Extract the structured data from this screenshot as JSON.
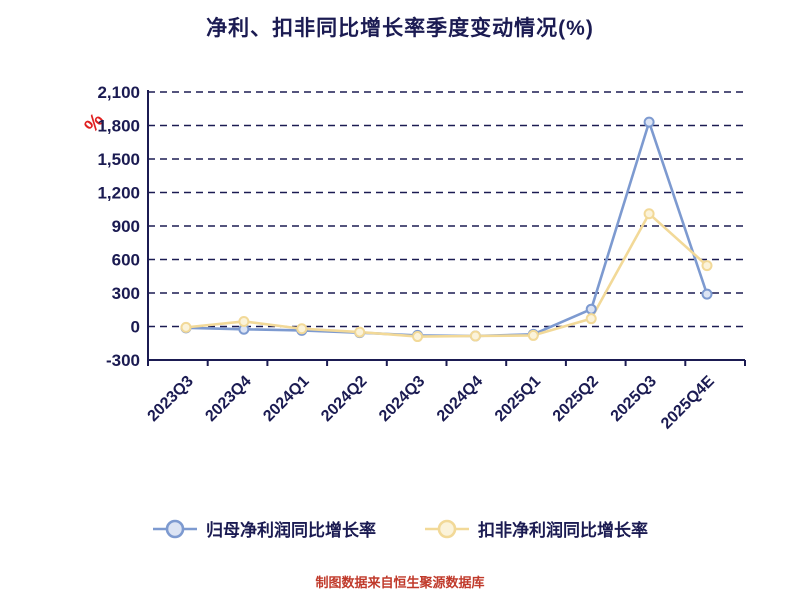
{
  "title": "净利、扣非同比增长率季度变动情况(%)",
  "y_unit": "%",
  "footer": "制图数据来自恒生聚源数据库",
  "colors": {
    "ink": "#1b1b52",
    "title": "#1b1b52",
    "footer": "#c03a2b",
    "unit": "#e02020",
    "series_blue": "#7d9ad0",
    "series_yellow": "#f2d998"
  },
  "legend": [
    {
      "label": "归母净利润同比增长率",
      "color": "#7d9ad0"
    },
    {
      "label": "扣非净利润同比增长率",
      "color": "#f2d998"
    }
  ],
  "chart_data": {
    "type": "line",
    "title": "净利、扣非同比增长率季度变动情况(%)",
    "xlabel": "",
    "ylabel": "%",
    "categories": [
      "2023Q3",
      "2023Q4",
      "2024Q1",
      "2024Q2",
      "2024Q3",
      "2024Q4",
      "2025Q1",
      "2025Q2",
      "2025Q3",
      "2025Q4E"
    ],
    "series": [
      {
        "name": "归母净利润同比增长率",
        "color": "#7d9ad0",
        "marker_fill": "#dce4f4",
        "values": [
          -12,
          -25,
          -35,
          -55,
          -80,
          -85,
          -70,
          155,
          1830,
          290
        ]
      },
      {
        "name": "扣非净利润同比增长率",
        "color": "#f2d998",
        "marker_fill": "#fbf3da",
        "values": [
          -8,
          45,
          -20,
          -50,
          -90,
          -85,
          -80,
          70,
          1010,
          545
        ]
      }
    ],
    "ylim": [
      -300,
      2100
    ],
    "yticks": [
      -300,
      0,
      300,
      600,
      900,
      1200,
      1500,
      1800,
      2100
    ],
    "grid": "dashed-horizontal",
    "legend_position": "bottom"
  }
}
